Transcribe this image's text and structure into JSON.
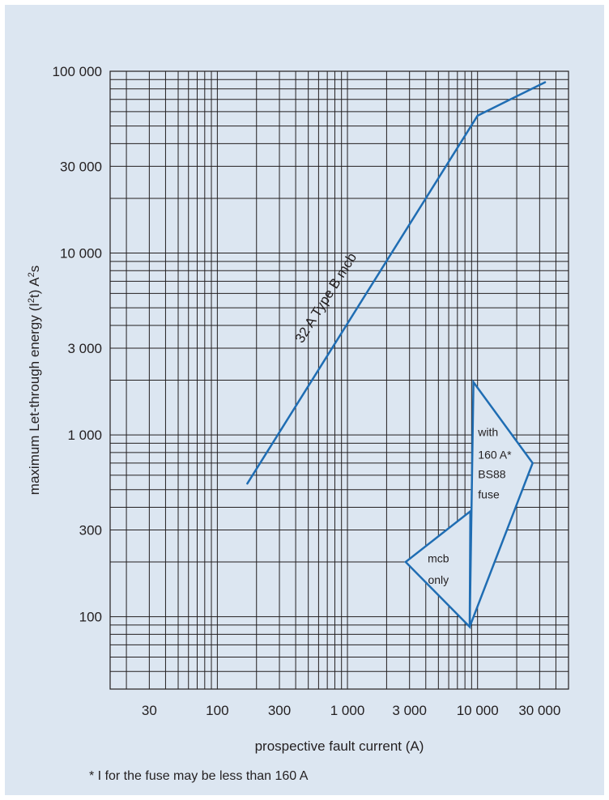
{
  "chart_data": {
    "type": "line",
    "title": "",
    "xlabel": "prospective fault current (A)",
    "ylabel_main": "maximum Let-through energy (I",
    "ylabel_sup1": "2",
    "ylabel_mid": "t) A",
    "ylabel_sup2": "2",
    "ylabel_end": "s",
    "x_scale": "log",
    "y_scale": "log",
    "xlim": [
      15,
      50000
    ],
    "ylim": [
      40,
      100000
    ],
    "grid": true,
    "x_tick_labels": [
      {
        "value": 30,
        "label": "30"
      },
      {
        "value": 100,
        "label": "100"
      },
      {
        "value": 300,
        "label": "300"
      },
      {
        "value": 1000,
        "label": "1 000"
      },
      {
        "value": 3000,
        "label": "3 000"
      },
      {
        "value": 10000,
        "label": "10 000"
      },
      {
        "value": 30000,
        "label": "30 000"
      }
    ],
    "y_tick_labels": [
      {
        "value": 100,
        "label": "100"
      },
      {
        "value": 300,
        "label": "300"
      },
      {
        "value": 1000,
        "label": "1 000"
      },
      {
        "value": 3000,
        "label": "3 000"
      },
      {
        "value": 10000,
        "label": "10 000"
      },
      {
        "value": 30000,
        "label": "30 000"
      },
      {
        "value": 100000,
        "label": "100 000"
      }
    ],
    "series": [
      {
        "name": "32 A Type B mcb",
        "points": [
          [
            170,
            540
          ],
          [
            10000,
            57000
          ],
          [
            33000,
            87000
          ]
        ],
        "color": "#1f6db3"
      }
    ],
    "annotations": [
      {
        "lines": [
          "with",
          "160 A*",
          "BS88",
          "fuse"
        ]
      },
      {
        "lines": [
          "mcb",
          "only"
        ]
      }
    ]
  },
  "footnote": "* I  for the fuse may be less than 160 A",
  "colors": {
    "background": "#dce6f1",
    "grid": "#231f20",
    "series": "#1f6db3",
    "text": "#231f20"
  }
}
